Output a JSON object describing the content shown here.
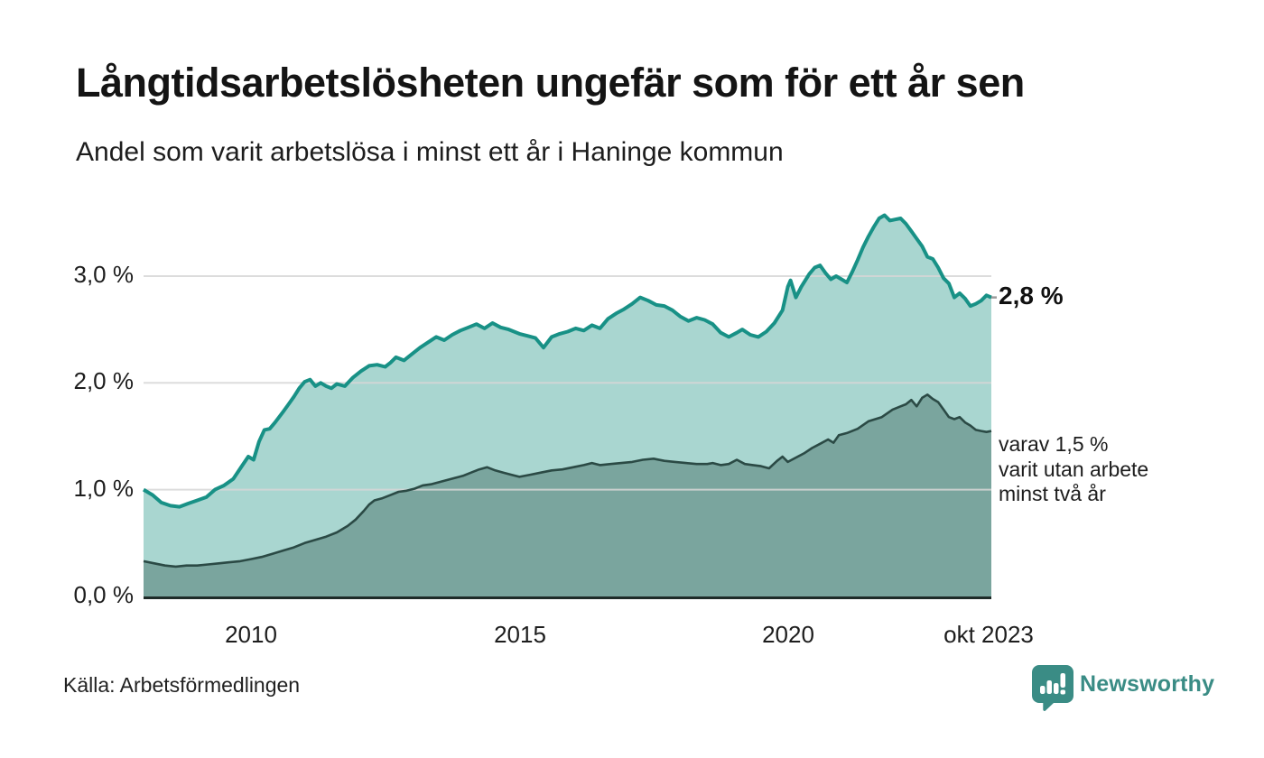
{
  "header": {
    "title": "Långtidsarbetslösheten ungefär som för ett år sen",
    "subtitle": "Andel som varit arbetslösa i minst ett år i Haninge kommun"
  },
  "axis": {
    "y_labels": [
      "3,0 %",
      "2,0 %",
      "1,0 %",
      "0,0 %"
    ],
    "x_labels": [
      "2010",
      "2015",
      "2020",
      "okt 2023"
    ]
  },
  "annotations": {
    "end_value": "2,8 %",
    "note_line1": "varav 1,5 %",
    "note_line2": "varit utan arbete",
    "note_line3": "minst två år"
  },
  "footer": {
    "source": "Källa: Arbetsförmedlingen",
    "brand": "Newsworthy"
  },
  "colors": {
    "series1_line": "#189186",
    "series1_fill": "#a9d6d0",
    "series2_line": "#2b4a45",
    "series2_fill": "#7aa59e",
    "gridline": "#d7d7d7",
    "baseline": "#1e2b28",
    "brand_teal": "#3a8c85"
  },
  "chart_data": {
    "type": "area",
    "title": "Långtidsarbetslösheten ungefär som för ett år sen",
    "subtitle": "Andel som varit arbetslösa i minst ett år i Haninge kommun",
    "unit": "%",
    "x_domain": [
      2008.0,
      2023.79
    ],
    "y_domain": [
      0,
      3.8
    ],
    "x_ticks": [
      2010,
      2015,
      2020,
      2023.79
    ],
    "x_tick_labels": [
      "2010",
      "2015",
      "2020",
      "okt 2023"
    ],
    "y_ticks": [
      0.0,
      1.0,
      2.0,
      3.0
    ],
    "grid": true,
    "legend_position": "right-annotations",
    "end_labels": {
      "series1": "2,8 %",
      "series2": "varav 1,5 % varit utan arbete minst två år"
    },
    "series": [
      {
        "name": "Andel arbetslösa minst ett år",
        "end_value": 2.8,
        "points": [
          [
            2008.0,
            1.0
          ],
          [
            2008.17,
            0.95
          ],
          [
            2008.33,
            0.88
          ],
          [
            2008.5,
            0.85
          ],
          [
            2008.67,
            0.84
          ],
          [
            2008.83,
            0.87
          ],
          [
            2009.0,
            0.9
          ],
          [
            2009.17,
            0.93
          ],
          [
            2009.33,
            1.0
          ],
          [
            2009.5,
            1.04
          ],
          [
            2009.67,
            1.1
          ],
          [
            2009.83,
            1.22
          ],
          [
            2009.95,
            1.31
          ],
          [
            2010.05,
            1.28
          ],
          [
            2010.15,
            1.45
          ],
          [
            2010.25,
            1.56
          ],
          [
            2010.35,
            1.57
          ],
          [
            2010.45,
            1.63
          ],
          [
            2010.6,
            1.73
          ],
          [
            2010.7,
            1.8
          ],
          [
            2010.8,
            1.87
          ],
          [
            2010.9,
            1.95
          ],
          [
            2011.0,
            2.01
          ],
          [
            2011.1,
            2.03
          ],
          [
            2011.2,
            1.97
          ],
          [
            2011.3,
            2.0
          ],
          [
            2011.4,
            1.97
          ],
          [
            2011.5,
            1.95
          ],
          [
            2011.6,
            1.99
          ],
          [
            2011.75,
            1.97
          ],
          [
            2011.9,
            2.05
          ],
          [
            2012.05,
            2.11
          ],
          [
            2012.2,
            2.16
          ],
          [
            2012.35,
            2.17
          ],
          [
            2012.5,
            2.15
          ],
          [
            2012.6,
            2.19
          ],
          [
            2012.7,
            2.24
          ],
          [
            2012.85,
            2.21
          ],
          [
            2013.0,
            2.27
          ],
          [
            2013.15,
            2.33
          ],
          [
            2013.3,
            2.38
          ],
          [
            2013.45,
            2.43
          ],
          [
            2013.6,
            2.4
          ],
          [
            2013.75,
            2.45
          ],
          [
            2013.9,
            2.49
          ],
          [
            2014.05,
            2.52
          ],
          [
            2014.2,
            2.55
          ],
          [
            2014.35,
            2.51
          ],
          [
            2014.5,
            2.56
          ],
          [
            2014.65,
            2.52
          ],
          [
            2014.8,
            2.5
          ],
          [
            2015.0,
            2.46
          ],
          [
            2015.15,
            2.44
          ],
          [
            2015.3,
            2.42
          ],
          [
            2015.45,
            2.33
          ],
          [
            2015.6,
            2.43
          ],
          [
            2015.75,
            2.46
          ],
          [
            2015.9,
            2.48
          ],
          [
            2016.05,
            2.51
          ],
          [
            2016.2,
            2.49
          ],
          [
            2016.35,
            2.54
          ],
          [
            2016.5,
            2.51
          ],
          [
            2016.65,
            2.6
          ],
          [
            2016.8,
            2.65
          ],
          [
            2016.95,
            2.69
          ],
          [
            2017.1,
            2.74
          ],
          [
            2017.25,
            2.8
          ],
          [
            2017.4,
            2.77
          ],
          [
            2017.55,
            2.73
          ],
          [
            2017.7,
            2.72
          ],
          [
            2017.85,
            2.68
          ],
          [
            2018.0,
            2.62
          ],
          [
            2018.15,
            2.58
          ],
          [
            2018.3,
            2.61
          ],
          [
            2018.45,
            2.59
          ],
          [
            2018.6,
            2.55
          ],
          [
            2018.75,
            2.47
          ],
          [
            2018.9,
            2.43
          ],
          [
            2019.05,
            2.47
          ],
          [
            2019.15,
            2.5
          ],
          [
            2019.3,
            2.45
          ],
          [
            2019.45,
            2.43
          ],
          [
            2019.6,
            2.48
          ],
          [
            2019.75,
            2.56
          ],
          [
            2019.9,
            2.68
          ],
          [
            2020.0,
            2.9
          ],
          [
            2020.05,
            2.96
          ],
          [
            2020.15,
            2.8
          ],
          [
            2020.25,
            2.9
          ],
          [
            2020.4,
            3.02
          ],
          [
            2020.5,
            3.08
          ],
          [
            2020.6,
            3.1
          ],
          [
            2020.7,
            3.03
          ],
          [
            2020.8,
            2.97
          ],
          [
            2020.9,
            3.0
          ],
          [
            2021.0,
            2.97
          ],
          [
            2021.1,
            2.94
          ],
          [
            2021.2,
            3.04
          ],
          [
            2021.3,
            3.15
          ],
          [
            2021.4,
            3.27
          ],
          [
            2021.5,
            3.37
          ],
          [
            2021.6,
            3.46
          ],
          [
            2021.7,
            3.54
          ],
          [
            2021.8,
            3.57
          ],
          [
            2021.9,
            3.52
          ],
          [
            2022.0,
            3.53
          ],
          [
            2022.1,
            3.54
          ],
          [
            2022.2,
            3.49
          ],
          [
            2022.3,
            3.42
          ],
          [
            2022.4,
            3.35
          ],
          [
            2022.5,
            3.28
          ],
          [
            2022.6,
            3.18
          ],
          [
            2022.7,
            3.16
          ],
          [
            2022.8,
            3.08
          ],
          [
            2022.9,
            2.98
          ],
          [
            2023.0,
            2.93
          ],
          [
            2023.1,
            2.8
          ],
          [
            2023.2,
            2.84
          ],
          [
            2023.3,
            2.79
          ],
          [
            2023.4,
            2.72
          ],
          [
            2023.5,
            2.74
          ],
          [
            2023.6,
            2.77
          ],
          [
            2023.7,
            2.82
          ],
          [
            2023.79,
            2.8
          ]
        ]
      },
      {
        "name": "Andel utan arbete minst två år",
        "end_value": 1.5,
        "points": [
          [
            2008.0,
            0.33
          ],
          [
            2008.2,
            0.31
          ],
          [
            2008.4,
            0.29
          ],
          [
            2008.6,
            0.28
          ],
          [
            2008.8,
            0.29
          ],
          [
            2009.0,
            0.29
          ],
          [
            2009.2,
            0.3
          ],
          [
            2009.4,
            0.31
          ],
          [
            2009.6,
            0.32
          ],
          [
            2009.8,
            0.33
          ],
          [
            2010.0,
            0.35
          ],
          [
            2010.2,
            0.37
          ],
          [
            2010.4,
            0.4
          ],
          [
            2010.6,
            0.43
          ],
          [
            2010.8,
            0.46
          ],
          [
            2011.0,
            0.5
          ],
          [
            2011.2,
            0.53
          ],
          [
            2011.4,
            0.56
          ],
          [
            2011.6,
            0.6
          ],
          [
            2011.8,
            0.66
          ],
          [
            2011.95,
            0.72
          ],
          [
            2012.1,
            0.8
          ],
          [
            2012.2,
            0.86
          ],
          [
            2012.3,
            0.9
          ],
          [
            2012.45,
            0.92
          ],
          [
            2012.6,
            0.95
          ],
          [
            2012.75,
            0.98
          ],
          [
            2012.9,
            0.99
          ],
          [
            2013.05,
            1.01
          ],
          [
            2013.2,
            1.04
          ],
          [
            2013.35,
            1.05
          ],
          [
            2013.5,
            1.07
          ],
          [
            2013.65,
            1.09
          ],
          [
            2013.8,
            1.11
          ],
          [
            2013.95,
            1.13
          ],
          [
            2014.1,
            1.16
          ],
          [
            2014.25,
            1.19
          ],
          [
            2014.4,
            1.21
          ],
          [
            2014.55,
            1.18
          ],
          [
            2014.7,
            1.16
          ],
          [
            2014.85,
            1.14
          ],
          [
            2015.0,
            1.12
          ],
          [
            2015.2,
            1.14
          ],
          [
            2015.4,
            1.16
          ],
          [
            2015.6,
            1.18
          ],
          [
            2015.8,
            1.19
          ],
          [
            2016.0,
            1.21
          ],
          [
            2016.2,
            1.23
          ],
          [
            2016.35,
            1.25
          ],
          [
            2016.5,
            1.23
          ],
          [
            2016.7,
            1.24
          ],
          [
            2016.9,
            1.25
          ],
          [
            2017.1,
            1.26
          ],
          [
            2017.3,
            1.28
          ],
          [
            2017.5,
            1.29
          ],
          [
            2017.7,
            1.27
          ],
          [
            2017.9,
            1.26
          ],
          [
            2018.1,
            1.25
          ],
          [
            2018.3,
            1.24
          ],
          [
            2018.5,
            1.24
          ],
          [
            2018.6,
            1.25
          ],
          [
            2018.75,
            1.23
          ],
          [
            2018.9,
            1.24
          ],
          [
            2019.05,
            1.28
          ],
          [
            2019.2,
            1.24
          ],
          [
            2019.35,
            1.23
          ],
          [
            2019.5,
            1.22
          ],
          [
            2019.65,
            1.2
          ],
          [
            2019.8,
            1.27
          ],
          [
            2019.9,
            1.31
          ],
          [
            2020.0,
            1.26
          ],
          [
            2020.15,
            1.3
          ],
          [
            2020.3,
            1.34
          ],
          [
            2020.45,
            1.39
          ],
          [
            2020.6,
            1.43
          ],
          [
            2020.75,
            1.47
          ],
          [
            2020.85,
            1.44
          ],
          [
            2020.95,
            1.51
          ],
          [
            2021.1,
            1.53
          ],
          [
            2021.3,
            1.57
          ],
          [
            2021.5,
            1.64
          ],
          [
            2021.75,
            1.68
          ],
          [
            2021.95,
            1.75
          ],
          [
            2022.1,
            1.78
          ],
          [
            2022.2,
            1.8
          ],
          [
            2022.3,
            1.84
          ],
          [
            2022.4,
            1.78
          ],
          [
            2022.5,
            1.86
          ],
          [
            2022.6,
            1.89
          ],
          [
            2022.7,
            1.85
          ],
          [
            2022.8,
            1.82
          ],
          [
            2022.9,
            1.75
          ],
          [
            2023.0,
            1.68
          ],
          [
            2023.1,
            1.66
          ],
          [
            2023.2,
            1.68
          ],
          [
            2023.3,
            1.63
          ],
          [
            2023.4,
            1.6
          ],
          [
            2023.5,
            1.56
          ],
          [
            2023.6,
            1.55
          ],
          [
            2023.7,
            1.54
          ],
          [
            2023.79,
            1.55
          ]
        ]
      }
    ]
  }
}
